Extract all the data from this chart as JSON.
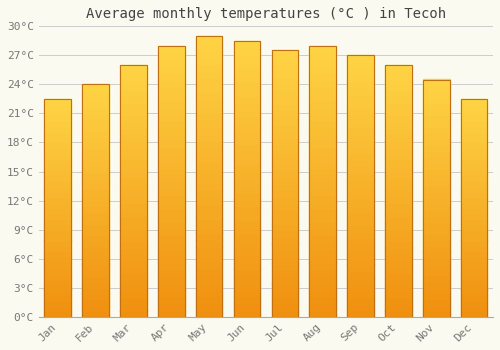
{
  "title": "Average monthly temperatures (°C ) in Tecoh",
  "months": [
    "Jan",
    "Feb",
    "Mar",
    "Apr",
    "May",
    "Jun",
    "Jul",
    "Aug",
    "Sep",
    "Oct",
    "Nov",
    "Dec"
  ],
  "temperatures": [
    22.5,
    24.0,
    26.0,
    28.0,
    29.0,
    28.5,
    27.5,
    28.0,
    27.0,
    26.0,
    24.5,
    22.5
  ],
  "bar_color_top": "#FFD040",
  "bar_color_bottom": "#F09010",
  "bar_edge_color": "#C07010",
  "ylim": [
    0,
    30
  ],
  "yticks": [
    0,
    3,
    6,
    9,
    12,
    15,
    18,
    21,
    24,
    27,
    30
  ],
  "ytick_labels": [
    "0°C",
    "3°C",
    "6°C",
    "9°C",
    "12°C",
    "15°C",
    "18°C",
    "21°C",
    "24°C",
    "27°C",
    "30°C"
  ],
  "background_color": "#FAFAF0",
  "grid_color": "#CCCCCC",
  "title_fontsize": 10,
  "tick_fontsize": 8,
  "font_color": "#777777",
  "title_color": "#444444",
  "bar_width": 0.7
}
